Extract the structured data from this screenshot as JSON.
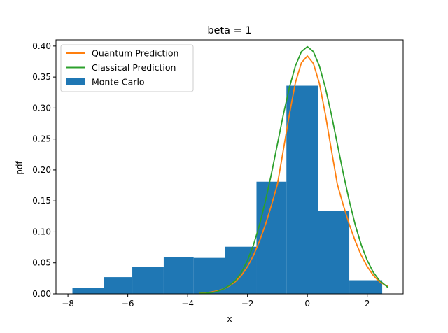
{
  "chart_data": {
    "type": "bar",
    "title": "beta = 1",
    "xlabel": "x",
    "ylabel": "pdf",
    "xlim": [
      -8.4,
      3.2
    ],
    "ylim": [
      0.0,
      0.41
    ],
    "xticks": [
      -8,
      -6,
      -4,
      -2,
      0,
      2
    ],
    "xtick_labels": [
      "−8",
      "−6",
      "−4",
      "−2",
      "0",
      "2"
    ],
    "yticks": [
      0.0,
      0.05,
      0.1,
      0.15,
      0.2,
      0.25,
      0.3,
      0.35,
      0.4
    ],
    "ytick_labels": [
      "0.00",
      "0.05",
      "0.10",
      "0.15",
      "0.20",
      "0.25",
      "0.30",
      "0.35",
      "0.40"
    ],
    "grid": false,
    "legend_position": "top-left",
    "histogram": {
      "name": "Monte Carlo",
      "color": "#1f77b4",
      "bin_edges": [
        -7.85,
        -6.8,
        -5.85,
        -4.8,
        -3.8,
        -2.75,
        -1.7,
        -0.7,
        0.35,
        1.4,
        2.5
      ],
      "values": [
        0.01,
        0.027,
        0.043,
        0.059,
        0.058,
        0.076,
        0.181,
        0.336,
        0.134,
        0.022
      ]
    },
    "series": [
      {
        "name": "Quantum Prediction",
        "color": "#ff7f0e",
        "x": [
          -3.6,
          -3.4,
          -3.2,
          -3.0,
          -2.8,
          -2.6,
          -2.4,
          -2.2,
          -2.0,
          -1.8,
          -1.6,
          -1.4,
          -1.2,
          -1.0,
          -0.8,
          -0.6,
          -0.4,
          -0.2,
          0.0,
          0.2,
          0.4,
          0.6,
          0.8,
          1.0,
          1.2,
          1.4,
          1.6,
          1.8,
          2.0,
          2.2,
          2.4,
          2.6,
          2.7
        ],
        "y": [
          0.001,
          0.002,
          0.003,
          0.005,
          0.008,
          0.013,
          0.02,
          0.03,
          0.044,
          0.062,
          0.085,
          0.112,
          0.143,
          0.177,
          0.233,
          0.29,
          0.341,
          0.373,
          0.384,
          0.372,
          0.34,
          0.29,
          0.233,
          0.177,
          0.143,
          0.112,
          0.085,
          0.062,
          0.044,
          0.03,
          0.02,
          0.014,
          0.012
        ]
      },
      {
        "name": "Classical Prediction",
        "color": "#2ca02c",
        "x": [
          -3.6,
          -3.4,
          -3.2,
          -3.0,
          -2.8,
          -2.6,
          -2.4,
          -2.2,
          -2.0,
          -1.8,
          -1.6,
          -1.4,
          -1.2,
          -1.0,
          -0.8,
          -0.6,
          -0.4,
          -0.2,
          0.0,
          0.2,
          0.4,
          0.6,
          0.8,
          1.0,
          1.2,
          1.4,
          1.6,
          1.8,
          2.0,
          2.2,
          2.4,
          2.6,
          2.7
        ],
        "y": [
          0.001,
          0.001,
          0.002,
          0.004,
          0.008,
          0.014,
          0.022,
          0.035,
          0.054,
          0.079,
          0.111,
          0.15,
          0.194,
          0.242,
          0.29,
          0.333,
          0.368,
          0.391,
          0.399,
          0.391,
          0.368,
          0.333,
          0.29,
          0.242,
          0.194,
          0.15,
          0.111,
          0.079,
          0.054,
          0.035,
          0.022,
          0.014,
          0.01
        ]
      }
    ],
    "legend_entries": [
      "Quantum Prediction",
      "Classical Prediction",
      "Monte Carlo"
    ]
  }
}
